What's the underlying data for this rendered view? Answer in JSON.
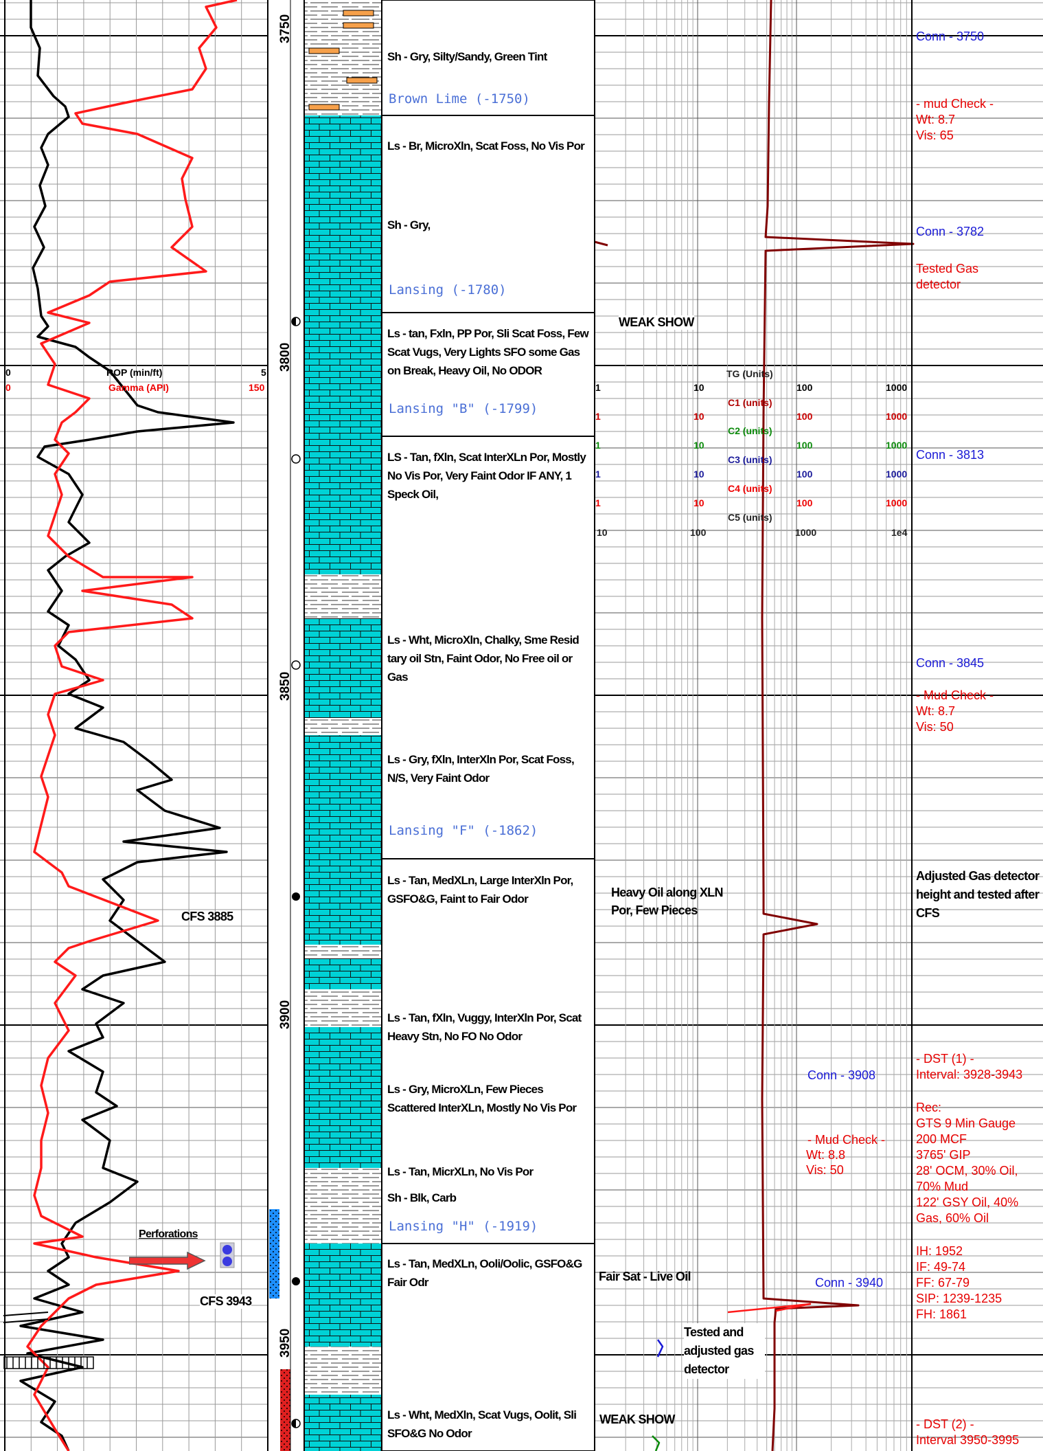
{
  "depths": [
    "3750",
    "3800",
    "3850",
    "3900",
    "3950"
  ],
  "track1": {
    "rop_label": "ROP (min/ft)",
    "rop_min": "0",
    "rop_max": "5",
    "gamma_label": "Gamma (API)",
    "gamma_min": "0",
    "gamma_max": "150",
    "cfs1": "CFS 3885",
    "cfs2": "CFS 3943",
    "perforations": "Perforations"
  },
  "descriptions": [
    "Sh - Gry, Silty/Sandy, Green Tint",
    "Ls - Br, MicroXln, Scat Foss, No Vis Por",
    "Sh - Gry,",
    "Ls - tan, Fxln, PP Por, Sli Scat Foss, Few Scat Vugs, Very Lights SFO some Gas on Break, Heavy Oil, No ODOR",
    "LS - Tan, fXln, Scat InterXLn Por, Mostly No Vis Por, Very Faint Odor IF ANY, 1 Speck Oil,",
    "Ls - Wht, MicroXln, Chalky, Sme Resid tary oil Stn, Faint Odor, No Free oil or Gas",
    "Ls - Gry, fXln, InterXln Por, Scat Foss, N/S, Very Faint Odor",
    "Ls - Tan, MedXLn, Large InterXln Por, GSFO&G, Faint to Fair Odor",
    "Ls - Tan, fXln, Vuggy, InterXln Por, Scat Heavy Stn, No FO No Odor",
    "Ls - Gry, MicroXLn, Few Pieces Scattered InterXLn, Mostly No Vis Por",
    "Ls - Tan, MicrXLn, No Vis Por",
    "Sh - Blk, Carb",
    "Ls - Tan, MedXLn, Ooli/Oolic, GSFO&G Fair Odr",
    "Ls - Wht, MedXln, Scat Vugs, Oolit, Sli SFO&G No Odor"
  ],
  "formations": [
    "Brown Lime  (-1750)",
    "Lansing  (-1780)",
    "Lansing \"B\"  (-1799)",
    "Lansing \"F\"  (-1862)",
    "Lansing \"H\"  (-1919)"
  ],
  "gas_scales": {
    "tg_label": "TG (Units)",
    "c1_label": "C1 (units)",
    "c2_label": "C2 (units)",
    "c3_label": "C3 (units)",
    "c4_label": "C4 (units)",
    "c5_label": "C5 (units)",
    "tg_ticks": [
      "1",
      "10",
      "100",
      "1000"
    ],
    "c5_ticks": [
      "10",
      "100",
      "1000",
      "1e4"
    ]
  },
  "gas_notes": {
    "weak_show_1": "WEAK SHOW",
    "heavy_oil": "Heavy Oil along XLN Por, Few Pieces",
    "conn_3908": "Conn - 3908",
    "mud_check_3": "- Mud Check -",
    "wt_3": "Wt: 8.8",
    "vis_3": "Vis: 50",
    "fair_sat": "Fair Sat - Live Oil",
    "conn_3940": "Conn - 3940",
    "tested_adjusted": "Tested and adjusted gas detector",
    "weak_show_2": "WEAK SHOW"
  },
  "remarks": {
    "conn_3750": "Conn - 3750",
    "mud_check_1": "- mud Check -",
    "wt_1": "Wt: 8.7",
    "vis_1": "Vis: 65",
    "conn_3782": "Conn - 3782",
    "tested_gas": "Tested Gas detector",
    "conn_3813": "Conn - 3813",
    "conn_3845": "Conn - 3845",
    "mud_check_2": "- Mud Check -",
    "wt_2": "Wt: 8.7",
    "vis_2": "Vis: 50",
    "adjusted": "Adjusted Gas detector height and tested after CFS",
    "dst1_title": "- DST (1) -",
    "dst1_interval": "Interval: 3928-3943",
    "rec": "Rec:",
    "gts": "GTS 9 Min Gauge",
    "mcf": "200 MCF",
    "gip": "3765' GIP",
    "ocm": "28' OCM, 30% Oil,",
    "mud70": "70% Mud",
    "gsy": "122' GSY Oil, 40%",
    "gas60": "Gas, 60% Oil",
    "ih": "IH: 1952",
    "if": "IF: 49-74",
    "ff": "FF: 67-79",
    "sip": "SIP: 1239-1235",
    "fh": "FH: 1861",
    "dst2_title": "- DST (2) -",
    "dst2_interval": "Interval 3950-3995"
  },
  "colors": {
    "rop": "#000000",
    "gamma": "#ff1a1a",
    "gas_tg": "#800000",
    "limestone": "#00cfd6",
    "remarks_red": "#e60000",
    "remarks_blue": "#1a1ad6"
  }
}
